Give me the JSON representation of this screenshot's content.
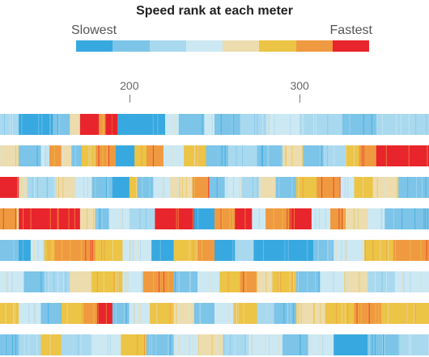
{
  "chart_data": {
    "type": "heatmap",
    "title": "Speed rank at each meter",
    "legend": {
      "low_label": "Slowest",
      "high_label": "Fastest",
      "placement": "top"
    },
    "palette": [
      "#38a9e0",
      "#7cc4e8",
      "#a9d9ef",
      "#cce8f3",
      "#ecdcae",
      "#ecc446",
      "#ef9a40",
      "#e8252c"
    ],
    "x_axis": {
      "visible_range": [
        124,
        376
      ],
      "ticks": [
        {
          "value": 200,
          "label": "200"
        },
        {
          "value": 300,
          "label": "300"
        }
      ]
    },
    "rows": [
      {
        "segments": [
          [
            124,
            135,
            2
          ],
          [
            135,
            155,
            0
          ],
          [
            155,
            165,
            1
          ],
          [
            165,
            171,
            4
          ],
          [
            171,
            182,
            7
          ],
          [
            182,
            186,
            6
          ],
          [
            186,
            193,
            7
          ],
          [
            193,
            208,
            0
          ],
          [
            208,
            221,
            0
          ],
          [
            221,
            229,
            3
          ],
          [
            229,
            244,
            1
          ],
          [
            244,
            250,
            3
          ],
          [
            250,
            265,
            1
          ],
          [
            265,
            280,
            2
          ],
          [
            280,
            300,
            3
          ],
          [
            300,
            325,
            2
          ],
          [
            325,
            345,
            1
          ],
          [
            345,
            376,
            2
          ]
        ]
      },
      {
        "segments": [
          [
            124,
            135,
            4
          ],
          [
            135,
            148,
            1
          ],
          [
            148,
            153,
            3
          ],
          [
            153,
            160,
            6
          ],
          [
            160,
            166,
            4
          ],
          [
            166,
            172,
            1
          ],
          [
            172,
            180,
            5
          ],
          [
            180,
            192,
            6
          ],
          [
            192,
            203,
            0
          ],
          [
            203,
            210,
            5
          ],
          [
            210,
            220,
            6
          ],
          [
            220,
            232,
            3
          ],
          [
            232,
            245,
            5
          ],
          [
            245,
            258,
            1
          ],
          [
            258,
            275,
            2
          ],
          [
            275,
            290,
            1
          ],
          [
            290,
            302,
            4
          ],
          [
            302,
            314,
            1
          ],
          [
            314,
            327,
            2
          ],
          [
            327,
            335,
            5
          ],
          [
            335,
            345,
            6
          ],
          [
            345,
            376,
            7
          ]
        ]
      },
      {
        "segments": [
          [
            124,
            135,
            7
          ],
          [
            135,
            140,
            4
          ],
          [
            140,
            157,
            2
          ],
          [
            157,
            168,
            4
          ],
          [
            168,
            178,
            3
          ],
          [
            178,
            190,
            1
          ],
          [
            190,
            200,
            0
          ],
          [
            200,
            205,
            5
          ],
          [
            205,
            214,
            1
          ],
          [
            214,
            224,
            3
          ],
          [
            224,
            237,
            4
          ],
          [
            237,
            247,
            6
          ],
          [
            247,
            256,
            1
          ],
          [
            256,
            266,
            3
          ],
          [
            266,
            276,
            2
          ],
          [
            276,
            286,
            4
          ],
          [
            286,
            298,
            1
          ],
          [
            298,
            310,
            5
          ],
          [
            310,
            324,
            6
          ],
          [
            324,
            332,
            3
          ],
          [
            332,
            343,
            5
          ],
          [
            343,
            358,
            4
          ],
          [
            358,
            376,
            1
          ]
        ]
      },
      {
        "segments": [
          [
            124,
            134,
            6
          ],
          [
            134,
            135,
            4
          ],
          [
            135,
            171,
            7
          ],
          [
            171,
            180,
            4
          ],
          [
            180,
            188,
            1
          ],
          [
            188,
            200,
            3
          ],
          [
            200,
            215,
            2
          ],
          [
            215,
            238,
            7
          ],
          [
            238,
            250,
            0
          ],
          [
            250,
            262,
            6
          ],
          [
            262,
            272,
            7
          ],
          [
            272,
            280,
            3
          ],
          [
            280,
            294,
            6
          ],
          [
            294,
            307,
            7
          ],
          [
            307,
            318,
            3
          ],
          [
            318,
            327,
            6
          ],
          [
            327,
            340,
            4
          ],
          [
            340,
            350,
            3
          ],
          [
            350,
            376,
            1
          ]
        ]
      },
      {
        "segments": [
          [
            124,
            135,
            1
          ],
          [
            135,
            142,
            0
          ],
          [
            142,
            150,
            3
          ],
          [
            150,
            156,
            5
          ],
          [
            156,
            180,
            6
          ],
          [
            180,
            196,
            5
          ],
          [
            196,
            213,
            3
          ],
          [
            213,
            226,
            0
          ],
          [
            226,
            240,
            5
          ],
          [
            240,
            250,
            6
          ],
          [
            250,
            262,
            0
          ],
          [
            262,
            273,
            2
          ],
          [
            273,
            308,
            0
          ],
          [
            308,
            320,
            1
          ],
          [
            320,
            338,
            3
          ],
          [
            338,
            355,
            5
          ],
          [
            355,
            376,
            6
          ]
        ]
      },
      {
        "segments": [
          [
            124,
            138,
            3
          ],
          [
            138,
            150,
            1
          ],
          [
            150,
            165,
            2
          ],
          [
            165,
            178,
            4
          ],
          [
            178,
            196,
            5
          ],
          [
            196,
            208,
            3
          ],
          [
            208,
            226,
            6
          ],
          [
            226,
            240,
            1
          ],
          [
            240,
            253,
            3
          ],
          [
            253,
            265,
            5
          ],
          [
            265,
            275,
            6
          ],
          [
            275,
            284,
            4
          ],
          [
            284,
            298,
            5
          ],
          [
            298,
            312,
            1
          ],
          [
            312,
            326,
            3
          ],
          [
            326,
            340,
            4
          ],
          [
            340,
            356,
            2
          ],
          [
            356,
            376,
            3
          ]
        ]
      },
      {
        "segments": [
          [
            124,
            135,
            5
          ],
          [
            135,
            148,
            3
          ],
          [
            148,
            160,
            1
          ],
          [
            160,
            173,
            5
          ],
          [
            173,
            181,
            6
          ],
          [
            181,
            190,
            7
          ],
          [
            190,
            200,
            1
          ],
          [
            200,
            212,
            3
          ],
          [
            212,
            226,
            5
          ],
          [
            226,
            238,
            4
          ],
          [
            238,
            250,
            1
          ],
          [
            250,
            261,
            3
          ],
          [
            261,
            275,
            5
          ],
          [
            275,
            285,
            2
          ],
          [
            285,
            298,
            1
          ],
          [
            298,
            315,
            4
          ],
          [
            315,
            332,
            5
          ],
          [
            332,
            348,
            6
          ],
          [
            348,
            376,
            5
          ]
        ]
      },
      {
        "segments": [
          [
            124,
            135,
            1
          ],
          [
            135,
            148,
            2
          ],
          [
            148,
            160,
            5
          ],
          [
            160,
            178,
            2
          ],
          [
            178,
            195,
            3
          ],
          [
            195,
            210,
            5
          ],
          [
            210,
            226,
            1
          ],
          [
            226,
            240,
            3
          ],
          [
            240,
            255,
            4
          ],
          [
            255,
            270,
            2
          ],
          [
            270,
            290,
            3
          ],
          [
            290,
            305,
            1
          ],
          [
            305,
            320,
            3
          ],
          [
            320,
            340,
            0
          ],
          [
            340,
            358,
            1
          ],
          [
            358,
            376,
            2
          ]
        ]
      }
    ]
  }
}
